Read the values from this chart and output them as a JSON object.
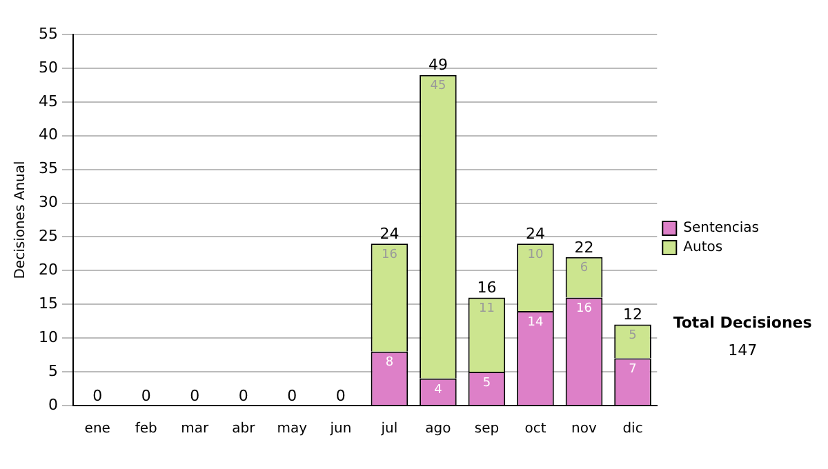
{
  "chart_data": {
    "type": "bar",
    "stacked": true,
    "ylabel": "Decisiones Anual",
    "categories": [
      "ene",
      "feb",
      "mar",
      "abr",
      "may",
      "jun",
      "jul",
      "ago",
      "sep",
      "oct",
      "nov",
      "dic"
    ],
    "series": [
      {
        "name": "Sentencias",
        "color": "#dd80c8",
        "values": [
          0,
          0,
          0,
          0,
          0,
          0,
          8,
          4,
          5,
          14,
          16,
          7
        ],
        "value_labels": [
          null,
          null,
          null,
          null,
          null,
          null,
          "8",
          "4",
          "5",
          "14",
          "16",
          "7"
        ]
      },
      {
        "name": "Autos",
        "color": "#cce58f",
        "values": [
          0,
          0,
          0,
          0,
          0,
          0,
          16,
          45,
          11,
          10,
          6,
          5
        ],
        "value_labels": [
          null,
          null,
          null,
          null,
          null,
          null,
          "16",
          "45",
          "11",
          "10",
          "6",
          "5"
        ]
      }
    ],
    "totals": [
      "0",
      "0",
      "0",
      "0",
      "0",
      "0",
      "24",
      "49",
      "16",
      "24",
      "22",
      "12"
    ],
    "ylim": [
      0,
      55
    ],
    "yticks": [
      0,
      5,
      10,
      15,
      20,
      25,
      30,
      35,
      40,
      45,
      50,
      55
    ],
    "grid": "y",
    "legend": "right",
    "annotations": [
      "Total Decisiones",
      "147"
    ]
  }
}
